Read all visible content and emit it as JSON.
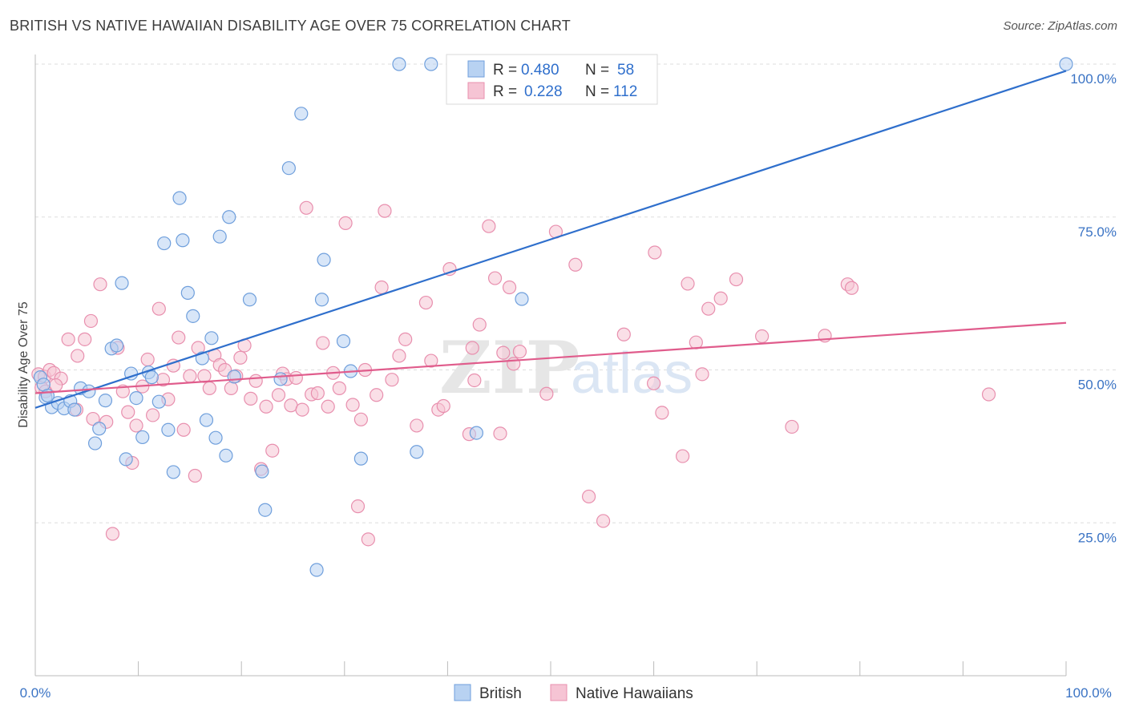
{
  "title": "BRITISH VS NATIVE HAWAIIAN DISABILITY AGE OVER 75 CORRELATION CHART",
  "source": "Source: ZipAtlas.com",
  "watermark": {
    "zip": "ZIP",
    "atlas": "atlas"
  },
  "colors": {
    "british_fill": "#b8d2f2",
    "british_stroke": "#6f9fdc",
    "british_line": "#2f6fcc",
    "hawaiian_fill": "#f6c4d4",
    "hawaiian_stroke": "#e88fae",
    "hawaiian_line": "#e05c8c",
    "tick_label": "#3a73c4",
    "grid": "#dddddd"
  },
  "legend_top": {
    "rows": [
      {
        "r_label": "R = ",
        "r_value": "0.480",
        "n_label": "N = ",
        "n_value": "58"
      },
      {
        "r_label": "R = ",
        "r_value": "0.228",
        "n_label": "N = ",
        "n_value": "112"
      }
    ]
  },
  "legend_bottom": {
    "british": "British",
    "hawaiian": "Native Hawaiians"
  },
  "chart_data": {
    "type": "scatter",
    "title": "BRITISH VS NATIVE HAWAIIAN DISABILITY AGE OVER 75 CORRELATION CHART",
    "xlabel": "",
    "ylabel": "Disability Age Over 75",
    "xlim": [
      0,
      100
    ],
    "ylim": [
      0,
      100
    ],
    "x_tick_labels": [
      "0.0%",
      "100.0%"
    ],
    "y_ticks": [
      25,
      50,
      75,
      100
    ],
    "y_tick_labels": [
      "25.0%",
      "50.0%",
      "75.0%",
      "100.0%"
    ],
    "grid": true,
    "legend_position": "bottom",
    "series": [
      {
        "name": "British",
        "r": 0.48,
        "n": 58,
        "trend": {
          "x": [
            0,
            100
          ],
          "y": [
            43.8,
            98.9
          ]
        },
        "points": [
          [
            0.5,
            48.8
          ],
          [
            0.8,
            47.6
          ],
          [
            1.0,
            45.5
          ],
          [
            1.2,
            45.8
          ],
          [
            1.6,
            43.9
          ],
          [
            2.2,
            44.6
          ],
          [
            2.8,
            43.7
          ],
          [
            3.4,
            44.9
          ],
          [
            3.8,
            43.5
          ],
          [
            4.4,
            47.0
          ],
          [
            5.2,
            46.5
          ],
          [
            5.8,
            38.0
          ],
          [
            6.2,
            40.4
          ],
          [
            6.8,
            45.0
          ],
          [
            7.4,
            53.5
          ],
          [
            7.9,
            54.0
          ],
          [
            8.4,
            64.2
          ],
          [
            8.8,
            35.4
          ],
          [
            9.3,
            49.4
          ],
          [
            9.8,
            45.4
          ],
          [
            10.4,
            39.0
          ],
          [
            11.0,
            49.6
          ],
          [
            11.3,
            48.8
          ],
          [
            12.0,
            44.8
          ],
          [
            12.5,
            70.7
          ],
          [
            12.9,
            40.2
          ],
          [
            13.4,
            33.3
          ],
          [
            14.0,
            78.1
          ],
          [
            14.3,
            71.2
          ],
          [
            14.8,
            62.6
          ],
          [
            15.3,
            58.8
          ],
          [
            16.2,
            51.9
          ],
          [
            16.6,
            41.8
          ],
          [
            17.1,
            55.2
          ],
          [
            17.5,
            38.9
          ],
          [
            17.9,
            71.8
          ],
          [
            18.5,
            36.0
          ],
          [
            18.8,
            75.0
          ],
          [
            19.3,
            48.9
          ],
          [
            20.8,
            61.5
          ],
          [
            22.0,
            33.4
          ],
          [
            22.3,
            27.1
          ],
          [
            23.8,
            48.5
          ],
          [
            24.6,
            83.0
          ],
          [
            25.8,
            91.9
          ],
          [
            27.3,
            17.3
          ],
          [
            27.8,
            61.5
          ],
          [
            28.0,
            68.0
          ],
          [
            29.9,
            54.7
          ],
          [
            30.6,
            49.8
          ],
          [
            31.6,
            35.5
          ],
          [
            35.3,
            100
          ],
          [
            37.0,
            36.6
          ],
          [
            38.4,
            100
          ],
          [
            42.8,
            39.7
          ],
          [
            47.2,
            61.6
          ],
          [
            52.0,
            100
          ],
          [
            100.0,
            100
          ]
        ]
      },
      {
        "name": "Native Hawaiians",
        "r": 0.228,
        "n": 112,
        "trend": {
          "x": [
            0,
            100
          ],
          "y": [
            46.2,
            57.7
          ]
        },
        "points": [
          [
            0.3,
            49.3
          ],
          [
            0.6,
            47.1
          ],
          [
            0.9,
            48.9
          ],
          [
            1.4,
            50.0
          ],
          [
            1.8,
            49.5
          ],
          [
            2.5,
            48.6
          ],
          [
            3.2,
            55.0
          ],
          [
            4.1,
            52.3
          ],
          [
            4.8,
            55.0
          ],
          [
            5.4,
            58.0
          ],
          [
            5.6,
            42.0
          ],
          [
            6.3,
            64.0
          ],
          [
            6.9,
            41.5
          ],
          [
            7.5,
            23.2
          ],
          [
            8.0,
            53.6
          ],
          [
            8.5,
            46.5
          ],
          [
            9.0,
            43.1
          ],
          [
            9.4,
            34.8
          ],
          [
            9.8,
            40.9
          ],
          [
            10.4,
            47.3
          ],
          [
            10.9,
            51.7
          ],
          [
            11.4,
            42.6
          ],
          [
            12.0,
            60.0
          ],
          [
            12.4,
            48.4
          ],
          [
            12.9,
            45.2
          ],
          [
            13.4,
            50.7
          ],
          [
            13.9,
            55.3
          ],
          [
            14.4,
            40.2
          ],
          [
            15.0,
            49.0
          ],
          [
            15.5,
            32.7
          ],
          [
            15.8,
            53.6
          ],
          [
            16.4,
            49.0
          ],
          [
            16.9,
            47.0
          ],
          [
            17.4,
            52.4
          ],
          [
            17.9,
            50.8
          ],
          [
            18.4,
            50.0
          ],
          [
            19.0,
            47.0
          ],
          [
            19.5,
            49.0
          ],
          [
            19.9,
            52.0
          ],
          [
            20.3,
            54.0
          ],
          [
            20.9,
            45.3
          ],
          [
            21.4,
            48.2
          ],
          [
            21.9,
            33.8
          ],
          [
            22.4,
            44.0
          ],
          [
            23.0,
            36.8
          ],
          [
            23.6,
            45.9
          ],
          [
            24.0,
            49.4
          ],
          [
            24.4,
            48.5
          ],
          [
            24.8,
            44.2
          ],
          [
            25.3,
            48.7
          ],
          [
            25.9,
            43.5
          ],
          [
            26.3,
            76.5
          ],
          [
            26.8,
            46.0
          ],
          [
            27.4,
            46.2
          ],
          [
            27.9,
            54.4
          ],
          [
            28.4,
            44.0
          ],
          [
            28.9,
            49.5
          ],
          [
            29.5,
            47.0
          ],
          [
            30.1,
            74.0
          ],
          [
            30.8,
            44.3
          ],
          [
            31.3,
            27.7
          ],
          [
            31.6,
            41.9
          ],
          [
            32.0,
            50.0
          ],
          [
            32.3,
            22.3
          ],
          [
            33.1,
            45.9
          ],
          [
            33.6,
            63.5
          ],
          [
            33.9,
            76.0
          ],
          [
            34.6,
            48.4
          ],
          [
            35.3,
            52.3
          ],
          [
            35.9,
            55.0
          ],
          [
            37.0,
            40.9
          ],
          [
            37.9,
            61.0
          ],
          [
            38.4,
            51.5
          ],
          [
            39.1,
            43.5
          ],
          [
            39.6,
            44.1
          ],
          [
            40.2,
            66.5
          ],
          [
            42.1,
            39.5
          ],
          [
            42.4,
            53.6
          ],
          [
            42.6,
            48.3
          ],
          [
            43.1,
            57.4
          ],
          [
            44.0,
            73.5
          ],
          [
            44.6,
            65.0
          ],
          [
            45.1,
            39.6
          ],
          [
            45.4,
            52.8
          ],
          [
            46.0,
            63.5
          ],
          [
            46.4,
            51.0
          ],
          [
            47.0,
            53.0
          ],
          [
            49.6,
            46.1
          ],
          [
            50.5,
            72.6
          ],
          [
            52.4,
            67.2
          ],
          [
            53.7,
            29.3
          ],
          [
            55.1,
            25.3
          ],
          [
            57.1,
            55.8
          ],
          [
            60.0,
            47.8
          ],
          [
            60.1,
            69.2
          ],
          [
            60.8,
            43.0
          ],
          [
            62.8,
            35.9
          ],
          [
            63.3,
            64.1
          ],
          [
            64.1,
            54.5
          ],
          [
            64.7,
            49.3
          ],
          [
            65.3,
            60.0
          ],
          [
            66.5,
            61.7
          ],
          [
            68.0,
            64.8
          ],
          [
            70.5,
            55.5
          ],
          [
            73.4,
            40.7
          ],
          [
            76.6,
            55.6
          ],
          [
            78.8,
            64.0
          ],
          [
            79.2,
            63.4
          ],
          [
            92.5,
            46.0
          ],
          [
            1.0,
            46.5
          ],
          [
            2.0,
            47.5
          ],
          [
            4.0,
            43.5
          ]
        ]
      }
    ]
  }
}
